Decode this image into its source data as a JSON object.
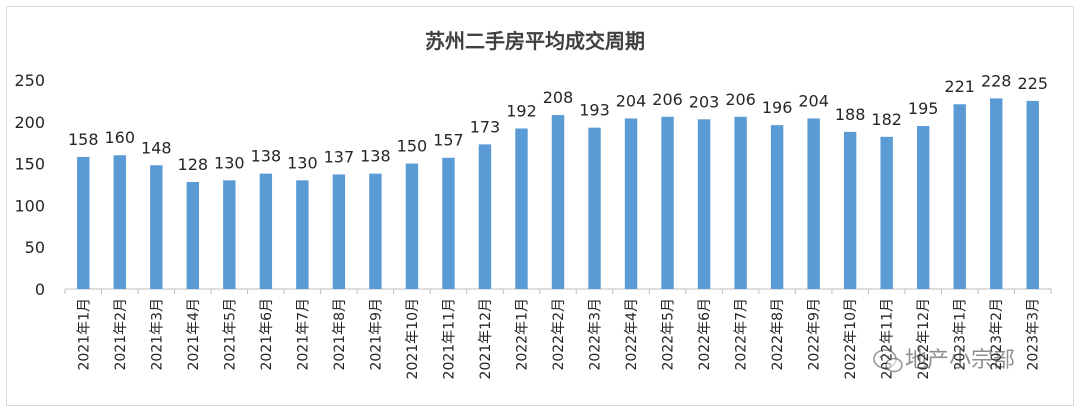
{
  "chart_data": {
    "type": "bar",
    "title": "苏州二手房平均成交周期",
    "xlabel": "",
    "ylabel": "",
    "ylim": [
      0,
      250
    ],
    "yticks": [
      0,
      50,
      100,
      150,
      200,
      250
    ],
    "grid": false,
    "legend": "none",
    "bar_color": "#5b9bd5",
    "categories": [
      "2021年1月",
      "2021年2月",
      "2021年3月",
      "2021年4月",
      "2021年5月",
      "2021年6月",
      "2021年7月",
      "2021年8月",
      "2021年9月",
      "2021年10月",
      "2021年11月",
      "2021年12月",
      "2022年1月",
      "2022年2月",
      "2022年3月",
      "2022年4月",
      "2022年5月",
      "2022年6月",
      "2022年7月",
      "2022年8月",
      "2022年9月",
      "2022年10月",
      "2022年11月",
      "2022年12月",
      "2023年1月",
      "2023年2月",
      "2023年3月"
    ],
    "values": [
      158,
      160,
      148,
      128,
      130,
      138,
      130,
      137,
      138,
      150,
      157,
      173,
      192,
      208,
      193,
      204,
      206,
      203,
      206,
      196,
      204,
      188,
      182,
      195,
      221,
      228,
      225
    ]
  },
  "watermark": {
    "text": "地产小宗部",
    "icon": "wechat-icon"
  }
}
